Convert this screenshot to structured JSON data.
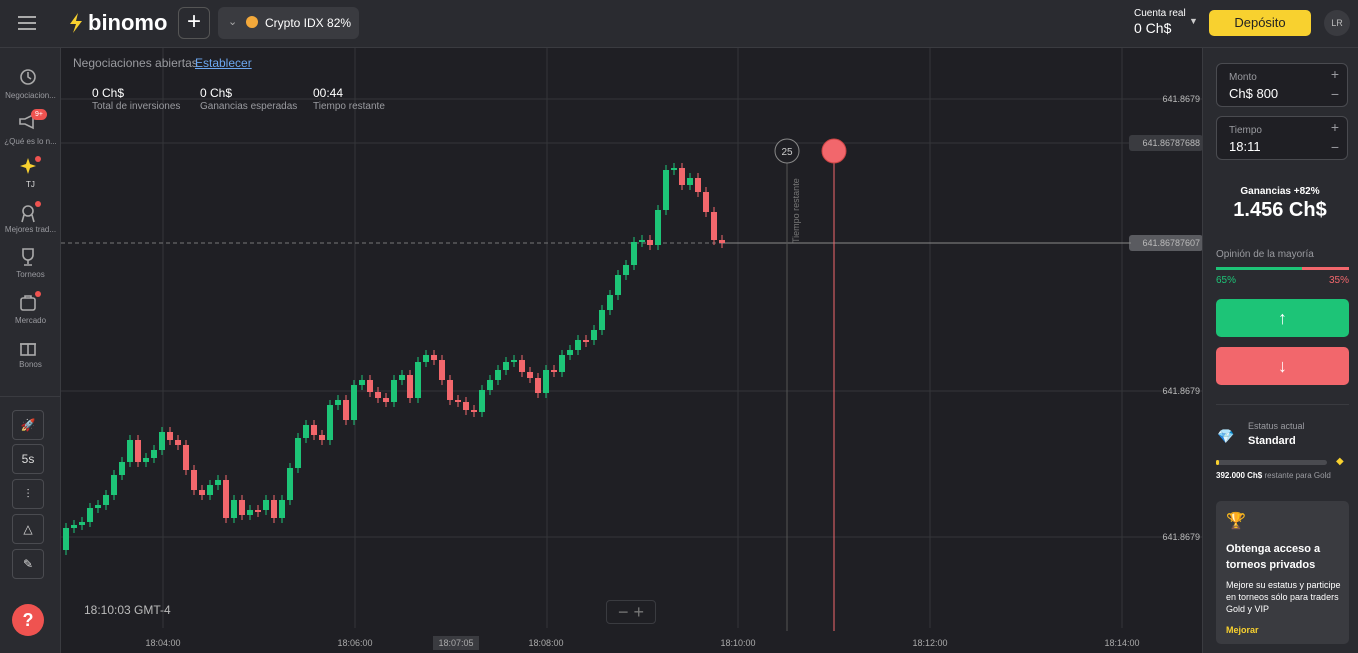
{
  "header": {
    "logo": "binomo",
    "asset": "Crypto IDX 82%",
    "account_label": "Cuenta real",
    "balance": "0 Ch$",
    "deposit": "Depósito",
    "avatar": "LR"
  },
  "sidebar": {
    "items": [
      "Negociacion...",
      "¿Qué es lo n...",
      "TJ",
      "Mejores trad...",
      "Torneos",
      "Mercado",
      "Bonos"
    ],
    "badge": "9+",
    "timeframe": "5s"
  },
  "chart": {
    "open_trades": "Negociaciones abiertas",
    "set_link": "Establecer",
    "stats": [
      {
        "value": "0 Ch$",
        "label": "Total de inversiones"
      },
      {
        "value": "0 Ch$",
        "label": "Ganancias esperadas"
      },
      {
        "value": "00:44",
        "label": "Tiempo restante"
      }
    ],
    "price_labels": [
      "641.8679",
      "641.86787688",
      "641.86787607",
      "641.8679",
      "641.8679"
    ],
    "timer": "25",
    "timer_caption": "Tiempo restante",
    "clock": "18:10:03 GMT-4",
    "time_labels": [
      "18:04:00",
      "18:06:00",
      "18:07:05",
      "18:08:00",
      "18:10:00",
      "18:12:00",
      "18:14:00"
    ]
  },
  "panel": {
    "amount_label": "Monto",
    "amount": "Ch$ 800",
    "time_label": "Tiempo",
    "time": "18:11",
    "profit_label": "Ganancias +82%",
    "profit": "1.456 Ch$",
    "majority_label": "Opinión de la mayoría",
    "majority_up": {
      "value": 65,
      "label": "65%"
    },
    "majority_down": {
      "value": 35,
      "label": "35%"
    },
    "status_label": "Estatus actual",
    "status": "Standard",
    "remaining_amount": "392.000 Ch$",
    "remaining_text": "restante para Gold",
    "promo_title": "Obtenga acceso a torneos privados",
    "promo_text": "Mejore su estatus y participe en torneos sólo para traders Gold y VIP",
    "promo_link": "Mejorar"
  }
}
